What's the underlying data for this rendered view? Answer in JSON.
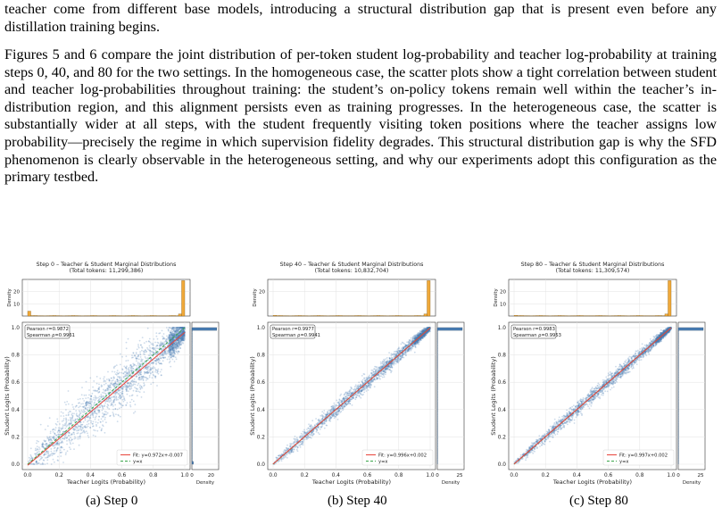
{
  "paragraphs": [
    "teacher come from different base models, introducing a structural distribution gap that is present even before any distillation training begins.",
    "Figures 5 and 6 compare the joint distribution of per-token student log-probability and teacher log-probability at training steps 0, 40, and 80 for the two settings. In the homogeneous case, the scatter plots show a tight correlation between student and teacher log-probabilities throughout training: the student’s on-policy tokens remain well within the teacher’s in-distribution region, and this alignment persists even as training progresses. In the heterogeneous case, the scatter is substantially wider at all steps, with the student frequently visiting token positions where the teacher assigns low probability—precisely the regime in which supervision fidelity degrades. This structural distribution gap is why the SFD phenomenon is clearly observable in the heterogeneous setting, and why our experiments adopt this configuration as the primary testbed."
  ],
  "colors": {
    "scatter": "#4a7fb5",
    "fit": "#e8433b",
    "identity": "#3aa64b",
    "hist": "#f0a93a"
  },
  "chart_data": [
    {
      "type": "scatter",
      "title": "Step 0  –  Teacher & Student Marginal Distributions",
      "subtitle": "(Total tokens: 11,299,386)",
      "xlabel": "Teacher Logits (Probability)",
      "ylabel": "Student Logits (Probability)",
      "top_ylabel": "Density",
      "right_xlabel": "Density",
      "xticks": [
        "0.0",
        "0.2",
        "0.4",
        "0.6",
        "0.8",
        "1.0"
      ],
      "yticks": [
        "0.0",
        "0.2",
        "0.4",
        "0.6",
        "0.8",
        "1.0"
      ],
      "top_yticks": [
        "10",
        "20"
      ],
      "right_xticks": [
        "0",
        "20"
      ],
      "xlim": [
        0,
        1
      ],
      "ylim": [
        0,
        1
      ],
      "top_ylim": [
        0,
        30
      ],
      "right_xlim": [
        0,
        28
      ],
      "pearson": "Pearson r=0.9872",
      "spearman": "Spearman ρ=0.9961",
      "fit": {
        "slope": 0.972,
        "intercept": -0.007
      },
      "fit_label": "Fit: y=0.972x+-0.007",
      "identity_label": "y=x",
      "spread": 0.11,
      "top_hist": {
        "left_peak": 4,
        "right_peak": 29
      },
      "right_hist": {
        "top_peak": 26,
        "bottom_peak": 1.5
      },
      "grid": true,
      "legend_position": "lower-right",
      "caption": "(a)  Step 0"
    },
    {
      "type": "scatter",
      "title": "Step 40  –  Teacher & Student Marginal Distributions",
      "subtitle": "(Total tokens: 10,832,704)",
      "xlabel": "Teacher Logits (Probability)",
      "ylabel": "Student Logits (Probability)",
      "top_ylabel": "Density",
      "right_xlabel": "Density",
      "xticks": [
        "0.0",
        "0.2",
        "0.4",
        "0.6",
        "0.8",
        "1.0"
      ],
      "yticks": [
        "0.0",
        "0.2",
        "0.4",
        "0.6",
        "0.8",
        "1.0"
      ],
      "top_yticks": [
        "20"
      ],
      "right_xticks": [
        "0",
        "25"
      ],
      "xlim": [
        0,
        1
      ],
      "ylim": [
        0,
        1
      ],
      "top_ylim": [
        0,
        30
      ],
      "right_xlim": [
        0,
        30
      ],
      "pearson": "Pearson r=0.9977",
      "spearman": "Spearman ρ=0.9941",
      "fit": {
        "slope": 0.996,
        "intercept": 0.002
      },
      "fit_label": "Fit: y=0.996x+0.002",
      "identity_label": "y=x",
      "spread": 0.035,
      "top_hist": {
        "left_peak": 0.6,
        "right_peak": 29
      },
      "right_hist": {
        "top_peak": 28,
        "bottom_peak": 0
      },
      "grid": true,
      "legend_position": "lower-right",
      "caption": "(b)  Step 40"
    },
    {
      "type": "scatter",
      "title": "Step 80  –  Teacher & Student Marginal Distributions",
      "subtitle": "(Total tokens: 11,309,574)",
      "xlabel": "Teacher Logits (Probability)",
      "ylabel": "Student Logits (Probability)",
      "top_ylabel": "Density",
      "right_xlabel": "Density",
      "xticks": [
        "0.0",
        "0.2",
        "0.4",
        "0.6",
        "0.8",
        "1.0"
      ],
      "yticks": [
        "0.0",
        "0.2",
        "0.4",
        "0.6",
        "0.8",
        "1.0"
      ],
      "top_yticks": [
        "10",
        "20"
      ],
      "right_xticks": [
        "0",
        "25"
      ],
      "xlim": [
        0,
        1
      ],
      "ylim": [
        0,
        1
      ],
      "top_ylim": [
        0,
        30
      ],
      "right_xlim": [
        0,
        30
      ],
      "pearson": "Pearson r=0.9983",
      "spearman": "Spearman ρ=0.9953",
      "fit": {
        "slope": 0.997,
        "intercept": 0.002
      },
      "fit_label": "Fit: y=0.997x+0.002",
      "identity_label": "y=x",
      "spread": 0.03,
      "top_hist": {
        "left_peak": 0.6,
        "right_peak": 29
      },
      "right_hist": {
        "top_peak": 28,
        "bottom_peak": 0
      },
      "grid": true,
      "legend_position": "lower-right",
      "caption": "(c)  Step 80"
    }
  ]
}
